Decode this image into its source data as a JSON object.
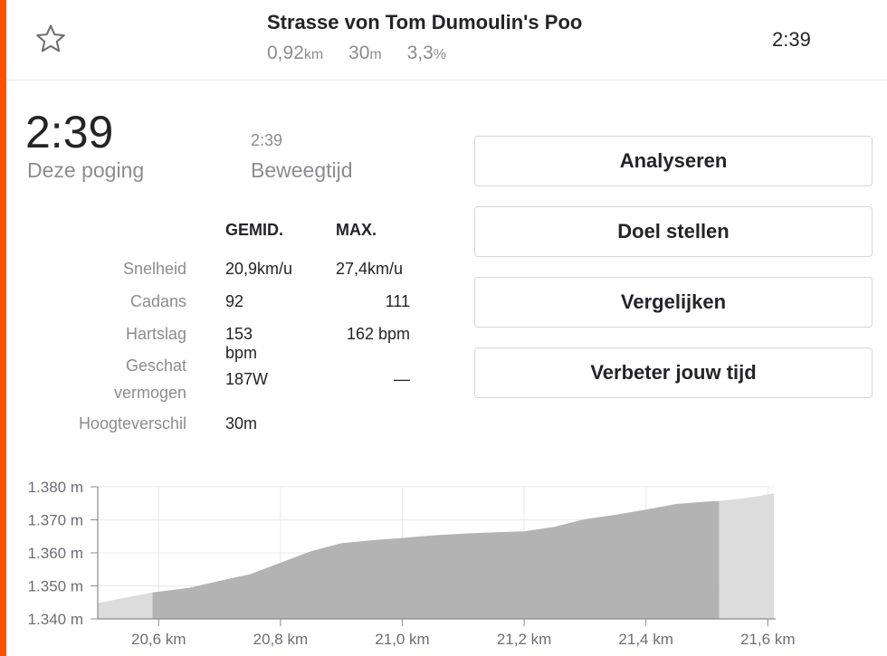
{
  "segment": {
    "title": "Strasse von Tom Dumoulin's Poo",
    "distance_value": "0,92",
    "distance_unit": "km",
    "elevation_value": "30",
    "elevation_unit": "m",
    "grade_value": "3,3",
    "grade_unit": "%",
    "time": "2:39"
  },
  "effort": {
    "elapsed_time": "2:39",
    "elapsed_label": "Deze poging",
    "moving_time": "2:39",
    "moving_label": "Beweegtijd"
  },
  "stats": {
    "col_avg": "GEMID.",
    "col_max": "MAX.",
    "rows": [
      {
        "label": "Snelheid",
        "avg": "20,9km/u",
        "max": "27,4km/u"
      },
      {
        "label": "Cadans",
        "avg": "92",
        "max": "111"
      },
      {
        "label": "Hartslag",
        "avg": "153 bpm",
        "max": "162 bpm"
      },
      {
        "label_line1": "Geschat",
        "label_line2": "vermogen",
        "avg": "187W",
        "max": "—"
      },
      {
        "label": "Hoogteverschil",
        "avg": "30m",
        "max": ""
      }
    ]
  },
  "buttons": {
    "analyze": "Analyseren",
    "set_goal": "Doel stellen",
    "compare": "Vergelijken",
    "improve": "Verbeter jouw tijd"
  },
  "icons": {
    "star": "star-outline-icon"
  },
  "colors": {
    "accent": "#fc5200",
    "segment_fill": "#b3b3b3",
    "context_fill": "#dcdcdc"
  },
  "chart_data": {
    "type": "area",
    "x_unit": "km",
    "y_unit": "m",
    "xlim": [
      20.5,
      21.61
    ],
    "ylim": [
      1340,
      1380
    ],
    "x_ticks": [
      "20,6 km",
      "20,8 km",
      "21,0 km",
      "21,2 km",
      "21,4 km",
      "21,6 km"
    ],
    "x_tick_values": [
      20.6,
      20.8,
      21.0,
      21.2,
      21.4,
      21.6
    ],
    "y_ticks": [
      "1.380 m",
      "1.370 m",
      "1.360 m",
      "1.350 m",
      "1.340 m"
    ],
    "y_tick_values": [
      1380,
      1370,
      1360,
      1350,
      1340
    ],
    "segment_start_km": 20.59,
    "segment_end_km": 21.52,
    "series": [
      {
        "x": [
          20.5,
          20.55,
          20.59,
          20.65,
          20.7,
          20.75,
          20.8,
          20.85,
          20.9,
          20.95,
          21.0,
          21.05,
          21.1,
          21.15,
          21.2,
          21.25,
          21.3,
          21.35,
          21.4,
          21.45,
          21.5,
          21.52,
          21.55,
          21.58,
          21.61
        ],
        "y": [
          1344.8,
          1346.6,
          1348.0,
          1349.4,
          1351.5,
          1353.5,
          1357.0,
          1360.5,
          1362.9,
          1363.8,
          1364.5,
          1365.3,
          1365.8,
          1366.2,
          1366.5,
          1367.9,
          1370.2,
          1371.5,
          1373.1,
          1374.8,
          1375.5,
          1375.7,
          1376.3,
          1377.0,
          1378.0
        ]
      }
    ],
    "grid": true
  }
}
